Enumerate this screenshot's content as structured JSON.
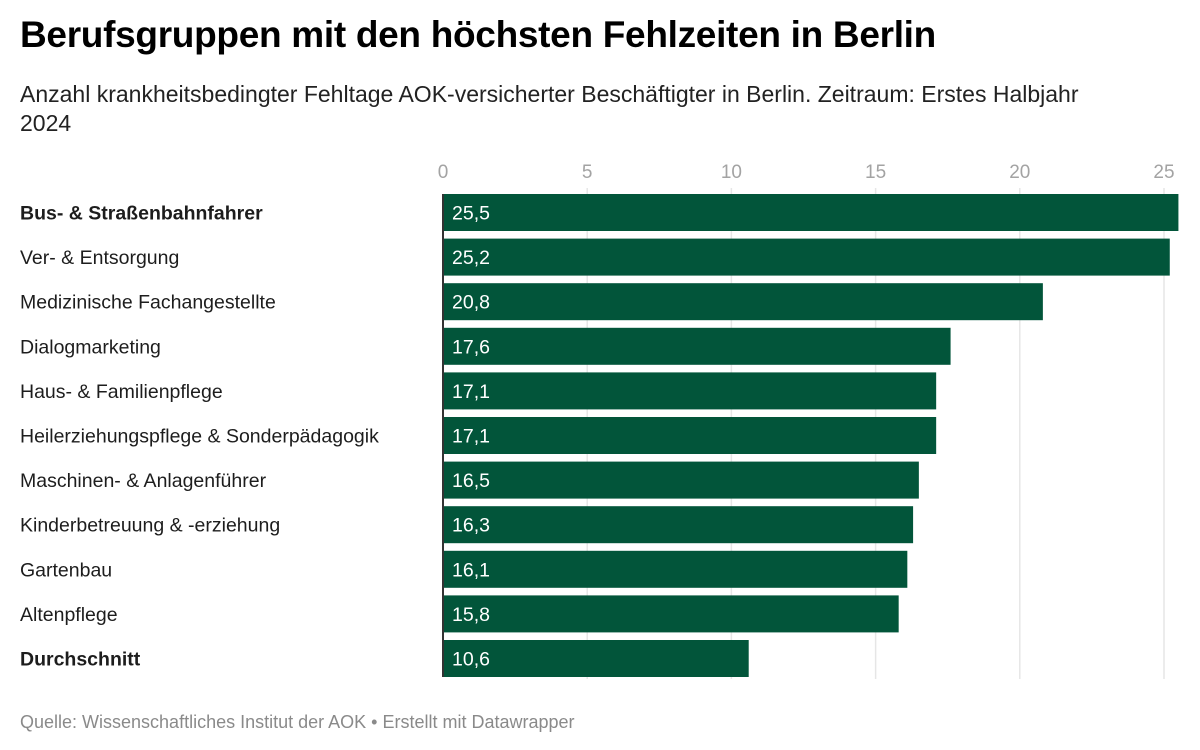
{
  "header": {
    "title": "Berufsgruppen mit den höchsten Fehlzeiten in Berlin",
    "subtitle": "Anzahl krankheitsbedingter Fehltage AOK-versicherter Beschäftigter in Berlin. Zeitraum: Erstes Halbjahr 2024"
  },
  "footer": {
    "source": "Quelle: Wissenschaftliches Institut der AOK",
    "separator": "•",
    "credit": "Erstellt mit Datawrapper"
  },
  "colors": {
    "bar": "#02553a",
    "grid": "#e6e6e6",
    "tick_label": "#a3a3a3",
    "bar_label": "#ffffff",
    "category_label": "#1d1d1d"
  },
  "chart_data": {
    "type": "bar",
    "orientation": "horizontal",
    "title": "Berufsgruppen mit den höchsten Fehlzeiten in Berlin",
    "subtitle": "Anzahl krankheitsbedingter Fehltage AOK-versicherter Beschäftigter in Berlin. Zeitraum: Erstes Halbjahr 2024",
    "xlabel": "",
    "ylabel": "",
    "xlim": [
      0,
      25.5
    ],
    "xticks": [
      0,
      5,
      10,
      15,
      20,
      25
    ],
    "xtick_labels": [
      "0",
      "5",
      "10",
      "15",
      "20",
      "25"
    ],
    "axis_position": "top",
    "grid": true,
    "legend": "none",
    "categories": [
      "Bus- & Straßenbahnfahrer",
      "Ver- & Entsorgung",
      "Medizinische Fachangestellte",
      "Dialogmarketing",
      "Haus- & Familienpflege",
      "Heilerziehungspflege & Sonderpädagogik",
      "Maschinen- & Anlagenführer",
      "Kinderbetreuung & -erziehung",
      "Gartenbau",
      "Altenpflege",
      "Durchschnitt"
    ],
    "bold_categories": [
      "Bus- & Straßenbahnfahrer",
      "Durchschnitt"
    ],
    "values": [
      25.5,
      25.2,
      20.8,
      17.6,
      17.1,
      17.1,
      16.5,
      16.3,
      16.1,
      15.8,
      10.6
    ],
    "value_labels": [
      "25,5",
      "25,2",
      "20,8",
      "17,6",
      "17,1",
      "17,1",
      "16,5",
      "16,3",
      "16,1",
      "15,8",
      "10,6"
    ]
  }
}
